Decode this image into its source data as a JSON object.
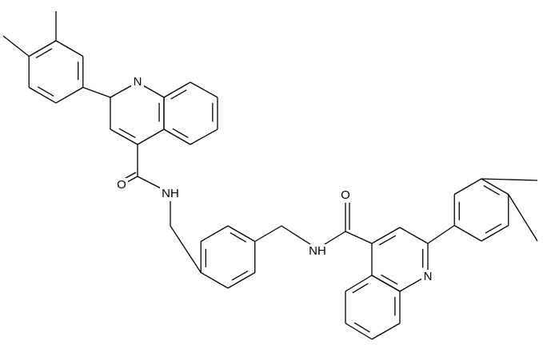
{
  "atoms": [
    {
      "label": "N"
    },
    {
      "label": "O"
    },
    {
      "label": "NH"
    },
    {
      "label": "NH"
    },
    {
      "label": "O"
    },
    {
      "label": "N"
    }
  ]
}
